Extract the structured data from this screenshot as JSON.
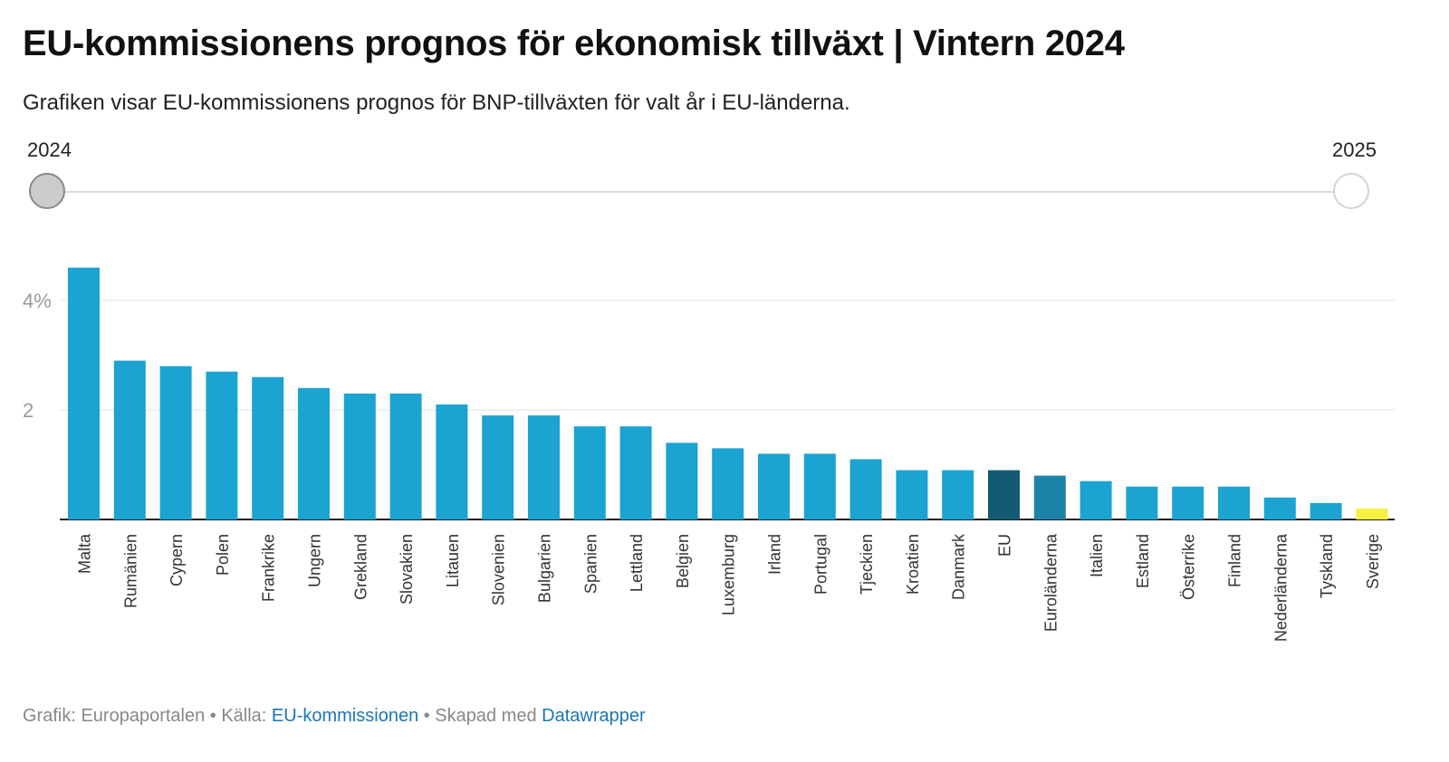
{
  "header": {
    "title": "EU-kommissionens prognos för ekonomisk tillväxt | Vintern 2024",
    "subtitle": "Grafiken visar EU-kommissionens prognos för BNP-tillväxten för valt år i EU-länderna."
  },
  "slider": {
    "start_label": "2024",
    "end_label": "2025",
    "selected": "2024"
  },
  "footer": {
    "prefix": "Grafik: Europaportalen • Källa: ",
    "source_link": "EU-kommissionen",
    "middle": " • Skapad med ",
    "tool_link": "Datawrapper"
  },
  "chart_data": {
    "type": "bar",
    "categories": [
      "Malta",
      "Rumänien",
      "Cypern",
      "Polen",
      "Frankrike",
      "Ungern",
      "Grekland",
      "Slovakien",
      "Litauen",
      "Slovenien",
      "Bulgarien",
      "Spanien",
      "Lettland",
      "Belgien",
      "Luxemburg",
      "Irland",
      "Portugal",
      "Tjeckien",
      "Kroatien",
      "Danmark",
      "EU",
      "Euroländerna",
      "Italien",
      "Estland",
      "Österrike",
      "Finland",
      "Nederländerna",
      "Tyskland",
      "Sverige"
    ],
    "values": [
      4.6,
      2.9,
      2.8,
      2.7,
      2.6,
      2.4,
      2.3,
      2.3,
      2.1,
      1.9,
      1.9,
      1.7,
      1.7,
      1.4,
      1.3,
      1.2,
      1.2,
      1.1,
      0.9,
      0.9,
      0.9,
      0.8,
      0.7,
      0.6,
      0.6,
      0.6,
      0.4,
      0.3,
      0.2
    ],
    "bar_colors": {
      "default": "#1ba3d1",
      "EU": "#135b75",
      "Euroländerna": "#1c82a8",
      "Sverige": "#f7f142"
    },
    "yticks": [
      {
        "value": 2,
        "label": "2"
      },
      {
        "value": 4,
        "label": "4%"
      }
    ],
    "ylim": [
      0,
      4.8
    ],
    "grid": true,
    "xlabel": "",
    "ylabel": ""
  }
}
